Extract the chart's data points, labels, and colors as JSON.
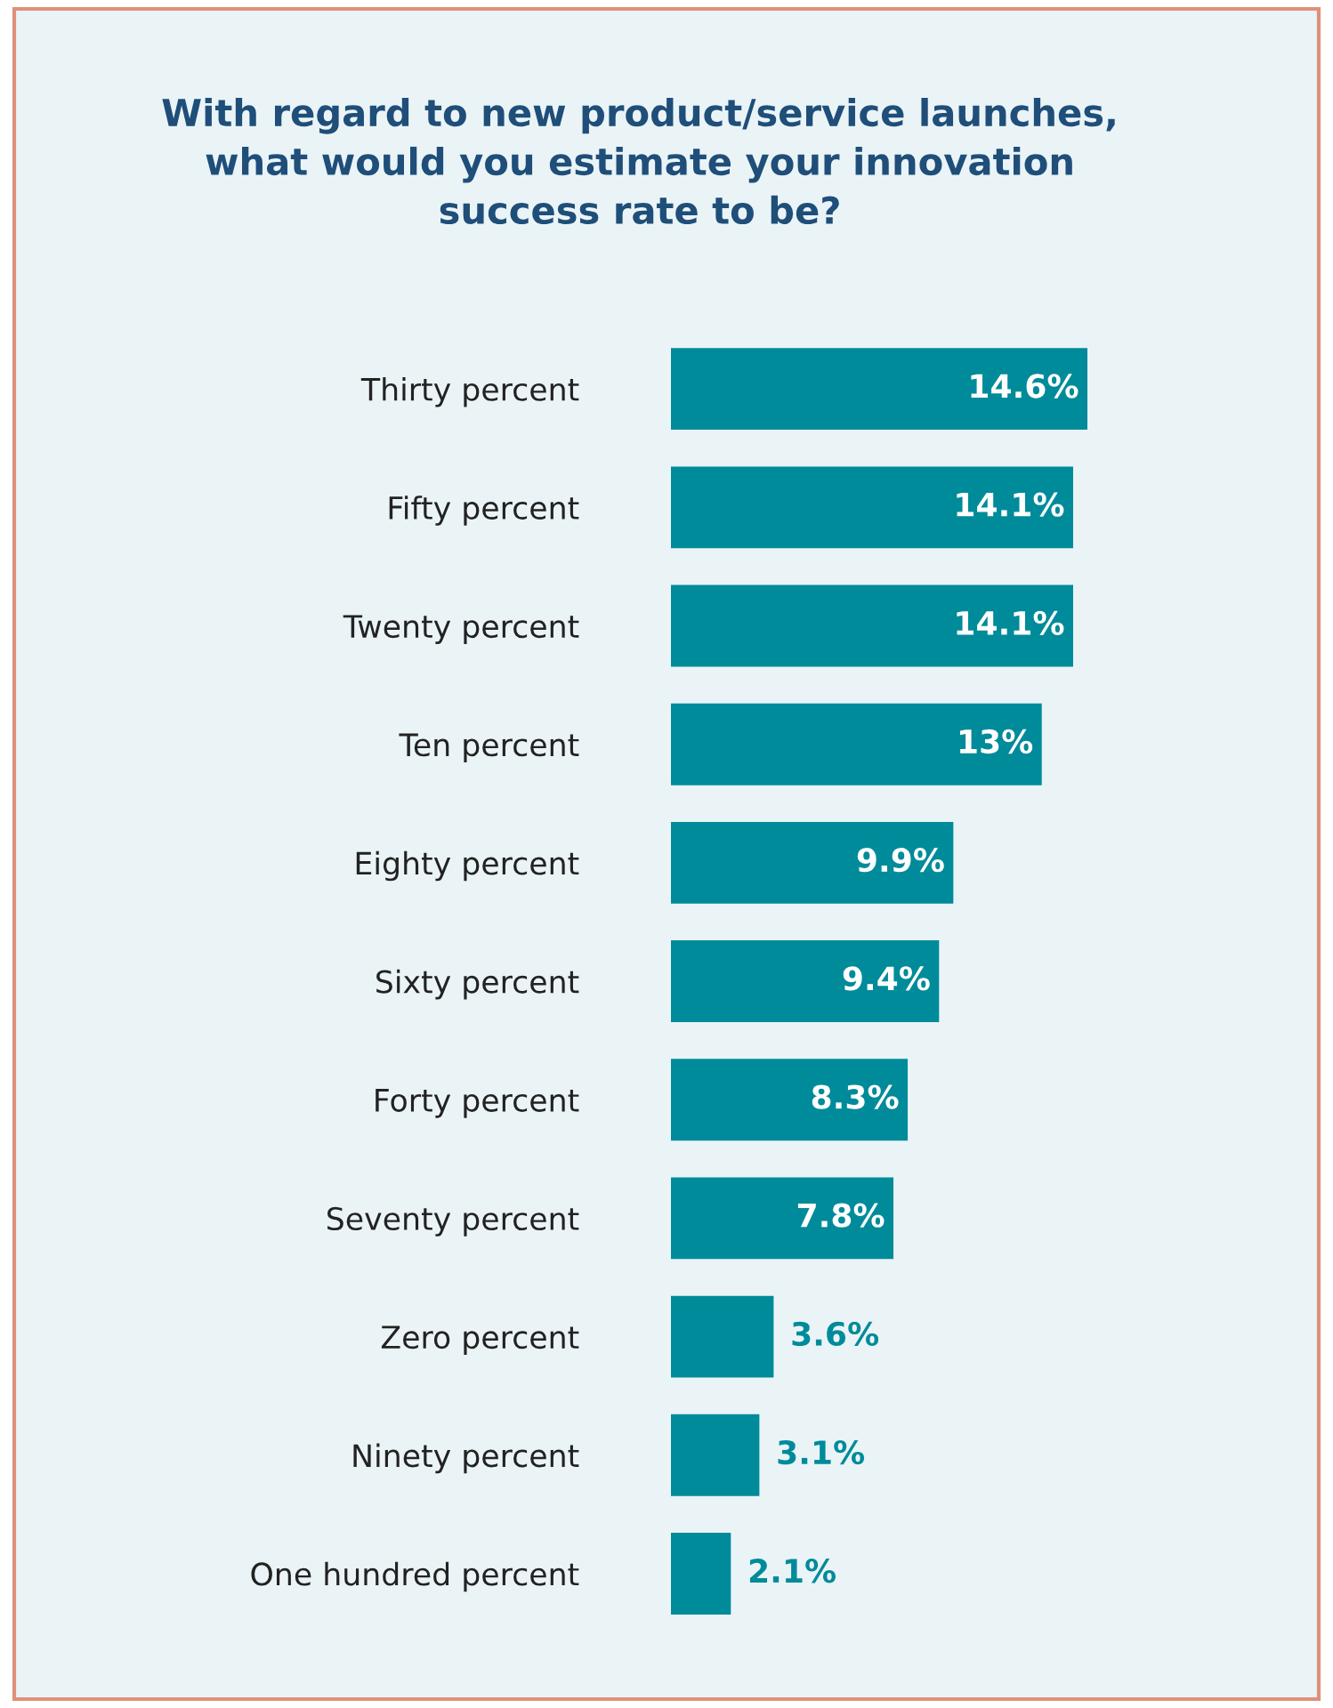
{
  "chart_data": {
    "type": "bar",
    "orientation": "horizontal",
    "title": "With regard to new product/service launches,\nwhat would you estimate your innovation\nsuccess rate to be?",
    "categories": [
      "Thirty percent",
      "Fifty percent",
      "Twenty percent",
      "Ten percent",
      "Eighty percent",
      "Sixty percent",
      "Forty percent",
      "Seventy percent",
      "Zero percent",
      "Ninety percent",
      "One hundred percent"
    ],
    "values": [
      14.6,
      14.1,
      14.1,
      13,
      9.9,
      9.4,
      8.3,
      7.8,
      3.6,
      3.1,
      2.1
    ],
    "value_labels": [
      "14.6%",
      "14.1%",
      "14.1%",
      "13%",
      "9.9%",
      "9.4%",
      "8.3%",
      "7.8%",
      "3.6%",
      "3.1%",
      "2.1%"
    ],
    "color": "#008b9a",
    "tick_labels": "y",
    "grid": false,
    "legend": false
  }
}
